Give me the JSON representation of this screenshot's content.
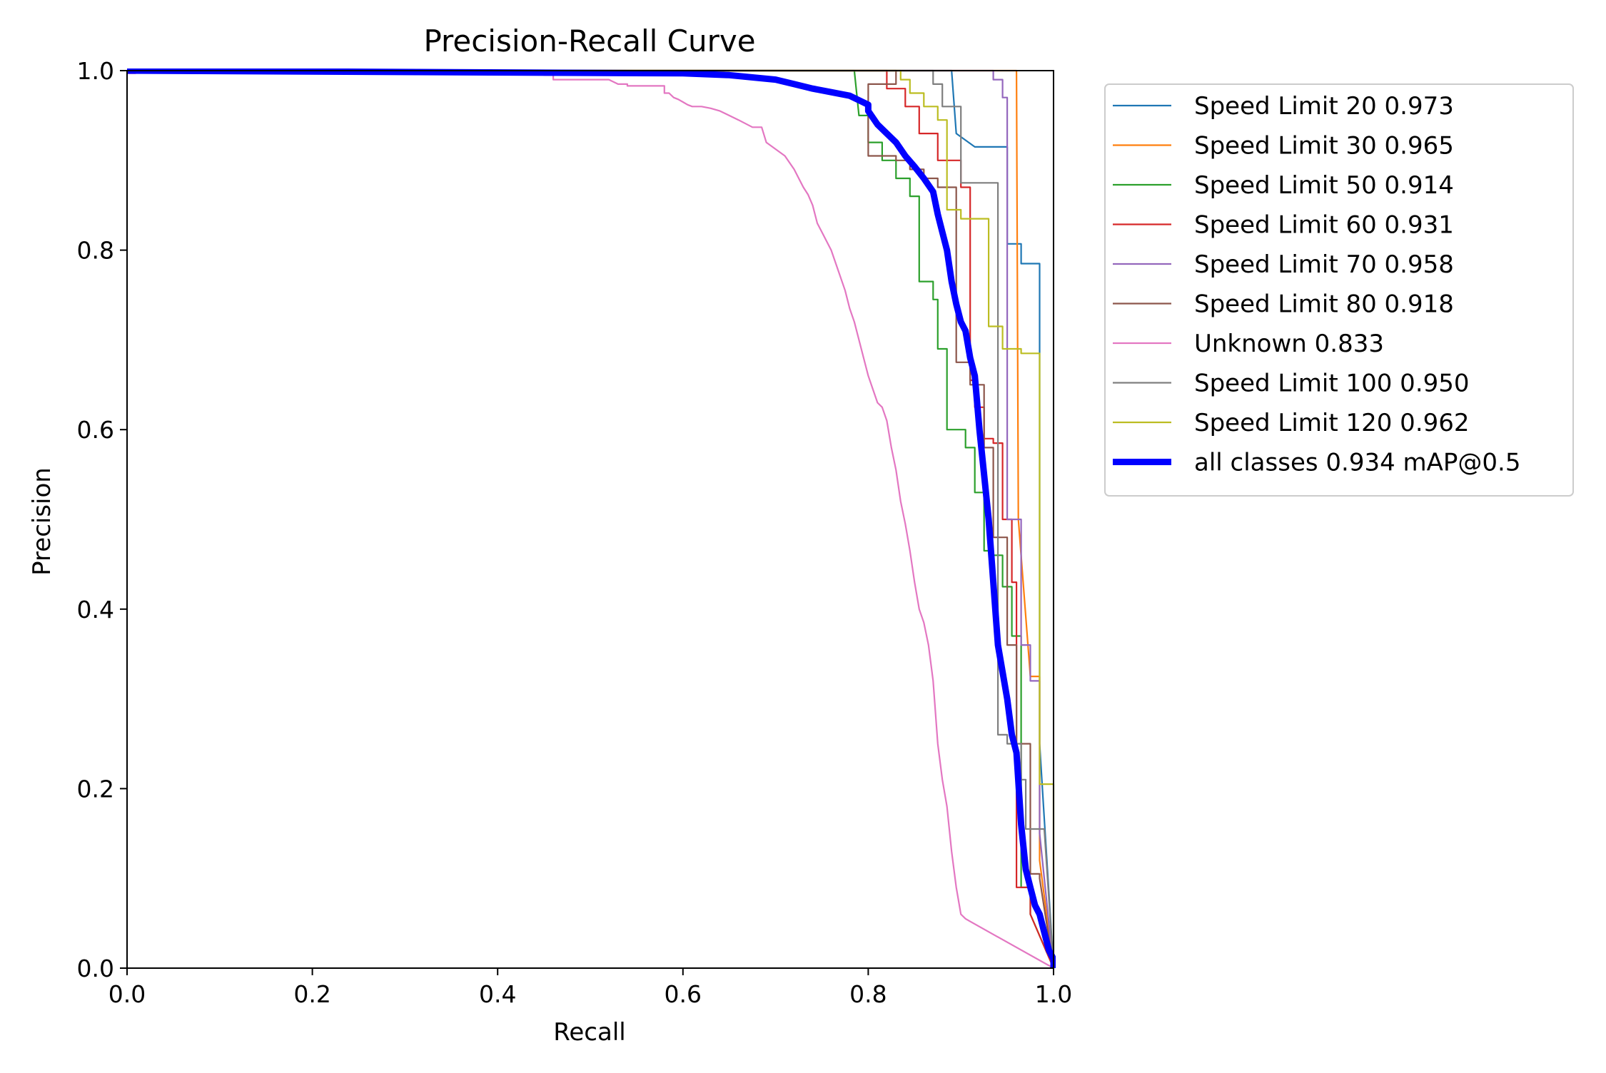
{
  "chart_data": {
    "type": "line",
    "title": "Precision-Recall Curve",
    "xlabel": "Recall",
    "ylabel": "Precision",
    "xlim": [
      0,
      1
    ],
    "ylim": [
      0,
      1
    ],
    "xticks": [
      "0.0",
      "0.2",
      "0.4",
      "0.6",
      "0.8",
      "1.0"
    ],
    "yticks": [
      "0.0",
      "0.2",
      "0.4",
      "0.6",
      "0.8",
      "1.0"
    ],
    "grid": false,
    "legend_position": "outside-top-right",
    "series": [
      {
        "name": "Speed Limit 20 0.973",
        "color": "#1f77b4",
        "x": [
          0,
          0.89,
          0.89,
          0.895,
          0.895,
          0.915,
          0.915,
          0.95,
          0.95,
          0.965,
          0.965,
          0.985,
          0.985,
          1.0
        ],
        "y": [
          1,
          1,
          1,
          0.93,
          0.93,
          0.915,
          0.915,
          0.915,
          0.807,
          0.807,
          0.785,
          0.785,
          0.25,
          0
        ]
      },
      {
        "name": "Speed Limit 30 0.965",
        "color": "#ff7f0e",
        "x": [
          0,
          0.96,
          0.96,
          0.962,
          0.962,
          0.975,
          0.975,
          0.985,
          0.985,
          1.0
        ],
        "y": [
          1,
          1,
          1,
          0.5,
          0.5,
          0.325,
          0.325,
          0.325,
          0.12,
          0
        ]
      },
      {
        "name": "Speed Limit 50 0.914",
        "color": "#2ca02c",
        "x": [
          0,
          0.785,
          0.79,
          0.8,
          0.8,
          0.815,
          0.815,
          0.83,
          0.83,
          0.845,
          0.845,
          0.855,
          0.855,
          0.87,
          0.87,
          0.875,
          0.875,
          0.885,
          0.885,
          0.905,
          0.905,
          0.915,
          0.915,
          0.925,
          0.925,
          0.935,
          0.935,
          0.945,
          0.945,
          0.955,
          0.955,
          0.965,
          0.965,
          0.975,
          0.975,
          1.0
        ],
        "y": [
          1,
          1,
          0.95,
          0.95,
          0.92,
          0.92,
          0.9,
          0.9,
          0.88,
          0.88,
          0.86,
          0.86,
          0.765,
          0.765,
          0.745,
          0.745,
          0.69,
          0.69,
          0.6,
          0.6,
          0.58,
          0.58,
          0.53,
          0.53,
          0.465,
          0.465,
          0.46,
          0.46,
          0.425,
          0.425,
          0.37,
          0.37,
          0.09,
          0.09,
          0.06,
          0
        ]
      },
      {
        "name": "Speed Limit 60 0.931",
        "color": "#d62728",
        "x": [
          0,
          0.82,
          0.82,
          0.84,
          0.84,
          0.855,
          0.855,
          0.875,
          0.875,
          0.9,
          0.9,
          0.91,
          0.91,
          0.915,
          0.915,
          0.925,
          0.925,
          0.935,
          0.935,
          0.945,
          0.945,
          0.955,
          0.955,
          0.96,
          0.96,
          0.975,
          0.975,
          1.0
        ],
        "y": [
          1,
          1,
          0.98,
          0.98,
          0.96,
          0.96,
          0.93,
          0.93,
          0.9,
          0.9,
          0.87,
          0.87,
          0.655,
          0.655,
          0.625,
          0.625,
          0.59,
          0.59,
          0.585,
          0.585,
          0.5,
          0.5,
          0.43,
          0.43,
          0.09,
          0.09,
          0.06,
          0
        ]
      },
      {
        "name": "Speed Limit 70 0.958",
        "color": "#9467bd",
        "x": [
          0,
          0.935,
          0.935,
          0.945,
          0.945,
          0.95,
          0.95,
          0.965,
          0.965,
          0.975,
          0.975,
          0.985,
          0.985,
          1.0
        ],
        "y": [
          1,
          1,
          0.99,
          0.99,
          0.97,
          0.97,
          0.5,
          0.5,
          0.36,
          0.36,
          0.32,
          0.32,
          0.15,
          0
        ]
      },
      {
        "name": "Speed Limit 80 0.918",
        "color": "#8c564b",
        "x": [
          0,
          0.83,
          0.83,
          0.815,
          0.8,
          0.8,
          0.83,
          0.83,
          0.845,
          0.845,
          0.86,
          0.86,
          0.875,
          0.875,
          0.895,
          0.895,
          0.91,
          0.91,
          0.925,
          0.925,
          0.935,
          0.935,
          0.95,
          0.95,
          0.96,
          0.96,
          0.975,
          0.975,
          0.985,
          0.985,
          1.0
        ],
        "y": [
          1,
          1,
          0.985,
          0.985,
          0.985,
          0.905,
          0.905,
          0.9,
          0.9,
          0.89,
          0.89,
          0.88,
          0.88,
          0.87,
          0.87,
          0.675,
          0.675,
          0.65,
          0.65,
          0.58,
          0.58,
          0.48,
          0.48,
          0.36,
          0.36,
          0.25,
          0.25,
          0.105,
          0.105,
          0.1,
          0
        ]
      },
      {
        "name": "Unknown 0.833",
        "color": "#e377c2",
        "x": [
          0,
          0.009,
          0.011,
          0.445,
          0.45,
          0.46,
          0.46,
          0.52,
          0.53,
          0.54,
          0.54,
          0.58,
          0.58,
          0.585,
          0.59,
          0.595,
          0.6,
          0.605,
          0.61,
          0.62,
          0.63,
          0.64,
          0.66,
          0.675,
          0.685,
          0.69,
          0.71,
          0.72,
          0.73,
          0.735,
          0.74,
          0.745,
          0.75,
          0.755,
          0.76,
          0.765,
          0.77,
          0.775,
          0.78,
          0.785,
          0.79,
          0.795,
          0.8,
          0.805,
          0.81,
          0.815,
          0.82,
          0.825,
          0.83,
          0.835,
          0.84,
          0.845,
          0.85,
          0.855,
          0.86,
          0.865,
          0.87,
          0.875,
          0.88,
          0.885,
          0.89,
          0.895,
          0.9,
          0.905,
          0.91,
          1.0
        ],
        "y": [
          0.997,
          0.997,
          0.998,
          0.998,
          0.995,
          0.995,
          0.99,
          0.99,
          0.985,
          0.985,
          0.983,
          0.983,
          0.975,
          0.975,
          0.97,
          0.968,
          0.965,
          0.962,
          0.96,
          0.96,
          0.958,
          0.955,
          0.945,
          0.937,
          0.937,
          0.92,
          0.905,
          0.89,
          0.87,
          0.862,
          0.85,
          0.83,
          0.82,
          0.81,
          0.8,
          0.785,
          0.77,
          0.755,
          0.735,
          0.72,
          0.7,
          0.68,
          0.66,
          0.645,
          0.63,
          0.625,
          0.61,
          0.58,
          0.555,
          0.52,
          0.495,
          0.465,
          0.43,
          0.4,
          0.385,
          0.36,
          0.32,
          0.25,
          0.21,
          0.18,
          0.13,
          0.09,
          0.06,
          0.055,
          0.052,
          0
        ]
      },
      {
        "name": "Speed Limit 100 0.950",
        "color": "#7f7f7f",
        "x": [
          0,
          0.87,
          0.87,
          0.88,
          0.88,
          0.9,
          0.9,
          0.91,
          0.91,
          0.94,
          0.94,
          0.95,
          0.95,
          0.965,
          0.965,
          0.97,
          0.97,
          0.99,
          0.99,
          1.0
        ],
        "y": [
          1,
          1,
          0.985,
          0.985,
          0.96,
          0.96,
          0.875,
          0.875,
          0.875,
          0.875,
          0.26,
          0.26,
          0.25,
          0.25,
          0.21,
          0.21,
          0.155,
          0.155,
          0.155,
          0
        ]
      },
      {
        "name": "Speed Limit 120 0.962",
        "color": "#bcbd22",
        "x": [
          0,
          0.835,
          0.835,
          0.845,
          0.845,
          0.86,
          0.86,
          0.875,
          0.875,
          0.885,
          0.885,
          0.9,
          0.9,
          0.93,
          0.93,
          0.945,
          0.945,
          0.965,
          0.965,
          0.985,
          0.985,
          0.99,
          0.99,
          1.0,
          1.0
        ],
        "y": [
          1,
          1,
          0.99,
          0.99,
          0.975,
          0.975,
          0.96,
          0.96,
          0.945,
          0.945,
          0.845,
          0.845,
          0.835,
          0.835,
          0.715,
          0.715,
          0.69,
          0.69,
          0.685,
          0.685,
          0.205,
          0.205,
          0.205,
          0.205,
          0
        ]
      },
      {
        "name": "all classes 0.934 mAP@0.5",
        "color": "#0000ff",
        "bold": true,
        "x": [
          0,
          0.6,
          0.65,
          0.7,
          0.72,
          0.74,
          0.76,
          0.78,
          0.79,
          0.8,
          0.8,
          0.81,
          0.82,
          0.83,
          0.84,
          0.85,
          0.86,
          0.87,
          0.875,
          0.88,
          0.885,
          0.89,
          0.895,
          0.9,
          0.905,
          0.91,
          0.915,
          0.92,
          0.925,
          0.93,
          0.935,
          0.94,
          0.945,
          0.95,
          0.955,
          0.96,
          0.965,
          0.97,
          0.975,
          0.98,
          0.985,
          0.99,
          0.995,
          1.0,
          1.0
        ],
        "y": [
          1,
          0.997,
          0.995,
          0.99,
          0.985,
          0.98,
          0.976,
          0.972,
          0.967,
          0.962,
          0.955,
          0.94,
          0.93,
          0.92,
          0.905,
          0.893,
          0.88,
          0.865,
          0.84,
          0.82,
          0.8,
          0.765,
          0.74,
          0.72,
          0.71,
          0.68,
          0.66,
          0.6,
          0.55,
          0.5,
          0.43,
          0.36,
          0.33,
          0.3,
          0.26,
          0.24,
          0.16,
          0.11,
          0.09,
          0.07,
          0.06,
          0.04,
          0.02,
          0.01,
          0
        ]
      }
    ]
  }
}
